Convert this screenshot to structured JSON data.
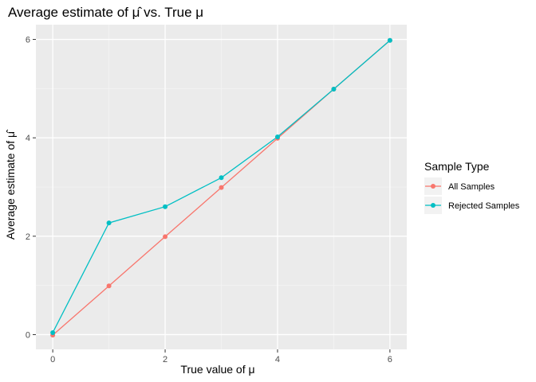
{
  "chart_data": {
    "type": "line",
    "title": "Average estimate of μ̂ vs. True μ",
    "xlabel": "True value of μ",
    "ylabel": "Average estimate of μ̂",
    "x": [
      0,
      1,
      2,
      3,
      4,
      5,
      6
    ],
    "xlim": [
      -0.3,
      6.3
    ],
    "ylim": [
      -0.3,
      6.3
    ],
    "x_ticks": [
      0,
      2,
      4,
      6
    ],
    "y_ticks": [
      0,
      2,
      4,
      6
    ],
    "grid": true,
    "legend_title": "Sample Type",
    "legend_position": "right",
    "series": [
      {
        "name": "All Samples",
        "color": "#F8766D",
        "values": [
          -0.01,
          0.99,
          1.99,
          2.99,
          3.99,
          4.99,
          5.98
        ]
      },
      {
        "name": "Rejected Samples",
        "color": "#00BFC4",
        "values": [
          0.04,
          2.27,
          2.6,
          3.19,
          4.02,
          4.99,
          5.98
        ]
      }
    ]
  }
}
